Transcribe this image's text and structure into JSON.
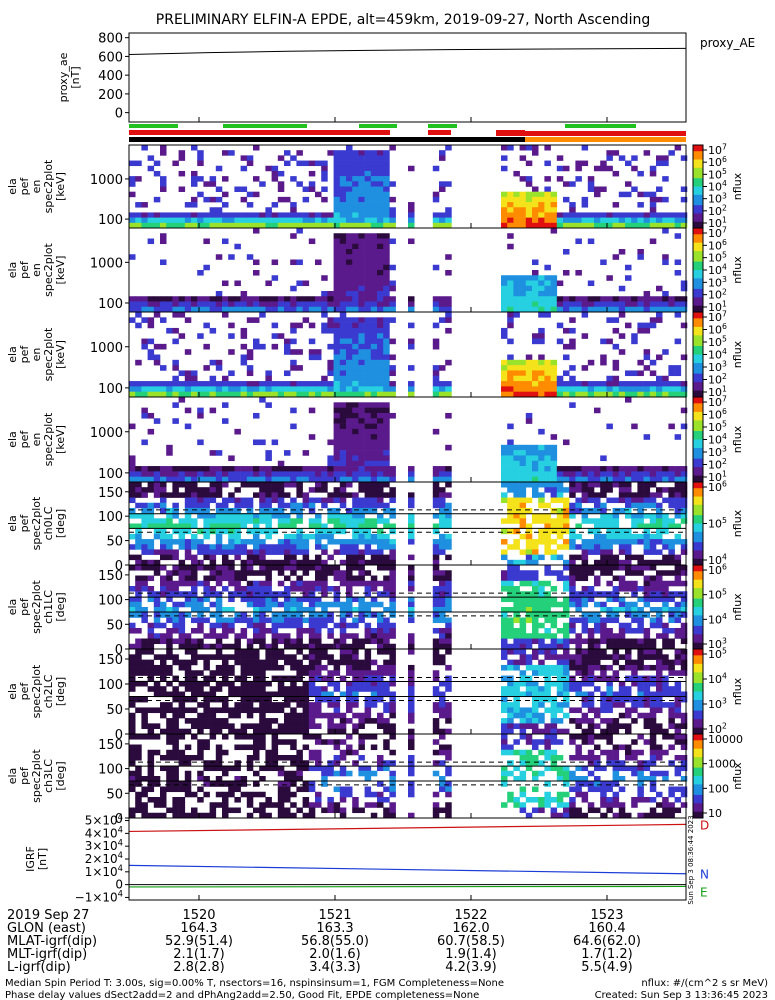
{
  "title": "PRELIMINARY ELFIN-A EPDE, alt=459km, 2019-09-27, North Ascending",
  "chart_data": [
    {
      "type": "line",
      "name": "proxy_ae",
      "ylabel_lines": [
        "proxy_ae",
        "[nT]"
      ],
      "yticks": [
        "800",
        "600",
        "400",
        "200",
        "0"
      ],
      "ylim": [
        -100,
        850
      ],
      "x_minutes": [
        0,
        0.5,
        1,
        1.5,
        2,
        2.5,
        3,
        3.5
      ],
      "values": [
        620,
        640,
        655,
        665,
        672,
        678,
        682,
        686
      ],
      "legend": "proxy_AE"
    },
    {
      "type": "segments",
      "name": "status-bars",
      "rows": [
        {
          "color": "#21c21f",
          "segments": [
            [
              129,
              178
            ],
            [
              223,
              307
            ],
            [
              359,
              397
            ],
            [
              428,
              457
            ],
            [
              565,
              636
            ]
          ]
        },
        {
          "color": "#e01010",
          "segments": [
            [
              129,
              390
            ],
            [
              428,
              451
            ],
            [
              496,
              525
            ]
          ]
        },
        {
          "color": "#000000",
          "segments": [
            [
              129,
              525
            ]
          ]
        },
        {
          "color": "#ff8c00",
          "segments": [
            [
              525,
              686
            ]
          ]
        },
        {
          "color": "#e01010",
          "segments": [
            [
              496,
              525
            ],
            [
              525,
              686
            ]
          ]
        }
      ]
    },
    {
      "type": "heatmap",
      "name": "energy-spectrogram-1",
      "ylabel_lines": [
        "ela",
        "pef",
        "en",
        "spec2plot",
        "[keV]"
      ],
      "yticks": [
        {
          "label": "1000",
          "v": 1000
        },
        {
          "label": "100",
          "v": 100
        }
      ],
      "ylog": true,
      "ylim": [
        60,
        7000
      ],
      "colorbar": {
        "ticks": [
          "10<sup>7</sup>",
          "10<sup>6</sup>",
          "10<sup>5</sup>",
          "10<sup>4</sup>",
          "10<sup>3</sup>",
          "10<sup>2</sup>",
          "10<sup>1</sup>"
        ],
        "label": "nflux",
        "scale": "log",
        "range": [
          1,
          7
        ]
      }
    },
    {
      "type": "heatmap",
      "name": "energy-spectrogram-2",
      "ylabel_lines": [
        "ela",
        "pef",
        "en",
        "spec2plot",
        "[keV]"
      ],
      "yticks": [
        {
          "label": "1000",
          "v": 1000
        },
        {
          "label": "100",
          "v": 100
        }
      ],
      "ylog": true,
      "ylim": [
        60,
        7000
      ],
      "colorbar": {
        "ticks": [
          "10<sup>7</sup>",
          "10<sup>6</sup>",
          "10<sup>5</sup>",
          "10<sup>4</sup>",
          "10<sup>3</sup>",
          "10<sup>2</sup>",
          "10<sup>1</sup>"
        ],
        "label": "nflux",
        "scale": "log",
        "range": [
          1,
          7
        ]
      }
    },
    {
      "type": "heatmap",
      "name": "energy-spectrogram-3",
      "ylabel_lines": [
        "ela",
        "pef",
        "en",
        "spec2plot",
        "[keV]"
      ],
      "yticks": [
        {
          "label": "1000",
          "v": 1000
        },
        {
          "label": "100",
          "v": 100
        }
      ],
      "ylog": true,
      "ylim": [
        60,
        7000
      ],
      "colorbar": {
        "ticks": [
          "10<sup>7</sup>",
          "10<sup>6</sup>",
          "10<sup>5</sup>",
          "10<sup>4</sup>",
          "10<sup>3</sup>",
          "10<sup>2</sup>",
          "10<sup>1</sup>"
        ],
        "label": "nflux",
        "scale": "log",
        "range": [
          1,
          7
        ]
      }
    },
    {
      "type": "heatmap",
      "name": "energy-spectrogram-4",
      "ylabel_lines": [
        "ela",
        "pef",
        "en",
        "spec2plot",
        "[keV]"
      ],
      "yticks": [
        {
          "label": "1000",
          "v": 1000
        },
        {
          "label": "100",
          "v": 100
        }
      ],
      "ylog": true,
      "ylim": [
        60,
        7000
      ],
      "colorbar": {
        "ticks": [
          "10<sup>7</sup>",
          "10<sup>6</sup>",
          "10<sup>5</sup>",
          "10<sup>4</sup>",
          "10<sup>3</sup>",
          "10<sup>2</sup>",
          "10<sup>1</sup>"
        ],
        "label": "nflux",
        "scale": "log",
        "range": [
          1,
          7
        ]
      }
    },
    {
      "type": "heatmap",
      "name": "pitch-angle-ch0",
      "ylabel_lines": [
        "ela",
        "pef",
        "spec2plot",
        "ch0LC",
        "[deg]"
      ],
      "yticks": [
        {
          "label": "150",
          "v": 150
        },
        {
          "label": "100",
          "v": 100
        },
        {
          "label": "50",
          "v": 50
        },
        {
          "label": "0",
          "v": 0
        }
      ],
      "ylim": [
        0,
        170
      ],
      "dashed_deg": [
        67,
        113
      ],
      "solid_deg": [
        105,
        75
      ],
      "colorbar": {
        "ticks": [
          "10<sup>6</sup>",
          "10<sup>5</sup>",
          "10<sup>4</sup>"
        ],
        "label": "nflux",
        "scale": "log",
        "range": [
          3.7,
          6.4
        ]
      }
    },
    {
      "type": "heatmap",
      "name": "pitch-angle-ch1",
      "ylabel_lines": [
        "ela",
        "pef",
        "spec2plot",
        "ch1LC",
        "[deg]"
      ],
      "yticks": [
        {
          "label": "150",
          "v": 150
        },
        {
          "label": "100",
          "v": 100
        },
        {
          "label": "50",
          "v": 50
        },
        {
          "label": "0",
          "v": 0
        }
      ],
      "ylim": [
        0,
        170
      ],
      "dashed_deg": [
        67,
        113
      ],
      "solid_deg": [
        105,
        75
      ],
      "colorbar": {
        "ticks": [
          "10<sup>6</sup>",
          "10<sup>5</sup>",
          "10<sup>4</sup>",
          "10<sup>3</sup>"
        ],
        "label": "nflux",
        "scale": "log",
        "range": [
          2.9,
          6.4
        ]
      }
    },
    {
      "type": "heatmap",
      "name": "pitch-angle-ch2",
      "ylabel_lines": [
        "ela",
        "pef",
        "spec2plot",
        "ch2LC",
        "[deg]"
      ],
      "yticks": [
        {
          "label": "150",
          "v": 150
        },
        {
          "label": "100",
          "v": 100
        },
        {
          "label": "50",
          "v": 50
        },
        {
          "label": "0",
          "v": 0
        }
      ],
      "ylim": [
        0,
        170
      ],
      "dashed_deg": [
        67,
        113
      ],
      "solid_deg": [
        105,
        75
      ],
      "colorbar": {
        "ticks": [
          "10<sup>5</sup>",
          "10<sup>4</sup>",
          "10<sup>3</sup>",
          "10<sup>2</sup>"
        ],
        "label": "nflux",
        "scale": "log",
        "range": [
          1.9,
          5.4
        ]
      }
    },
    {
      "type": "heatmap",
      "name": "pitch-angle-ch3",
      "ylabel_lines": [
        "ela",
        "pef",
        "spec2plot",
        "ch3LC",
        "[deg]"
      ],
      "yticks": [
        {
          "label": "150",
          "v": 150
        },
        {
          "label": "100",
          "v": 100
        },
        {
          "label": "50",
          "v": 50
        },
        {
          "label": "0",
          "v": 0
        }
      ],
      "ylim": [
        0,
        170
      ],
      "dashed_deg": [
        67,
        113
      ],
      "solid_deg": [
        105,
        75
      ],
      "colorbar": {
        "ticks": [
          "10000",
          "1000",
          "100",
          "10"
        ],
        "label": "nflux",
        "scale": "log",
        "range": [
          1,
          4.2
        ]
      }
    },
    {
      "type": "line",
      "name": "igrf",
      "ylabel_lines": [
        "IGRF",
        "[nT]"
      ],
      "yticks": [
        {
          "label": "5×10<sup>4</sup>",
          "v": 50000
        },
        {
          "label": "4×10<sup>4</sup>",
          "v": 40000
        },
        {
          "label": "3×10<sup>4</sup>",
          "v": 30000
        },
        {
          "label": "2×10<sup>4</sup>",
          "v": 20000
        },
        {
          "label": "1×10<sup>4</sup>",
          "v": 10000
        },
        {
          "label": "0",
          "v": 0
        },
        {
          "label": "−1×10<sup>4</sup>",
          "v": -10000
        }
      ],
      "ylim": [
        -12000,
        52000
      ],
      "series": [
        {
          "name": "D",
          "color": "#cc1111",
          "values": [
            41500,
            47000
          ]
        },
        {
          "name": "N",
          "color": "#1a3cd6",
          "values": [
            15000,
            8500
          ]
        },
        {
          "name": "E",
          "color": "#14a014",
          "values": [
            -1800,
            -1400
          ]
        }
      ],
      "side_text": "Sun Sep  3 08:36:44 2023"
    }
  ],
  "x_axis": {
    "ticks": [
      "1520",
      "1521",
      "1522",
      "1523"
    ],
    "rows": [
      {
        "label": "2019 Sep 27",
        "values": [
          "1520",
          "1521",
          "1522",
          "1523"
        ]
      },
      {
        "label": "GLON (east)",
        "values": [
          "164.3",
          "163.3",
          "162.0",
          "160.4"
        ]
      },
      {
        "label": "MLAT-igrf(dip)",
        "values": [
          "52.9(51.4)",
          "56.8(55.0)",
          "60.7(58.5)",
          "64.6(62.0)"
        ]
      },
      {
        "label": "MLT-igrf(dip)",
        "values": [
          "2.1(1.7)",
          "2.0(1.6)",
          "1.9(1.4)",
          "1.7(1.2)"
        ]
      },
      {
        "label": "L-igrf(dip)",
        "values": [
          "2.8(2.8)",
          "3.4(3.3)",
          "4.2(3.9)",
          "5.5(4.9)"
        ]
      }
    ]
  },
  "footer": {
    "line1": "Median Spin Period T: 3.00s, sig=0.00% T, nsectors=16, nspinsinsum=1, FGM Completeness=None",
    "line2": "Phase delay values dSect2add=2 and dPhAng2add=2.50, Good Fit, EPDE completeness=None",
    "right1": "nflux: #/(cm^2 s sr MeV)",
    "right2": "Created: Sun Sep  3 13:36:45 2023"
  },
  "colors": {
    "frame": "#000000",
    "cbar": [
      "#ffffff",
      "#2b0a3d",
      "#5a1a8c",
      "#3a3ad0",
      "#1f8fe0",
      "#26d0e0",
      "#25d07a",
      "#9be22a",
      "#f4e21a",
      "#ff8c00",
      "#e01010"
    ]
  }
}
